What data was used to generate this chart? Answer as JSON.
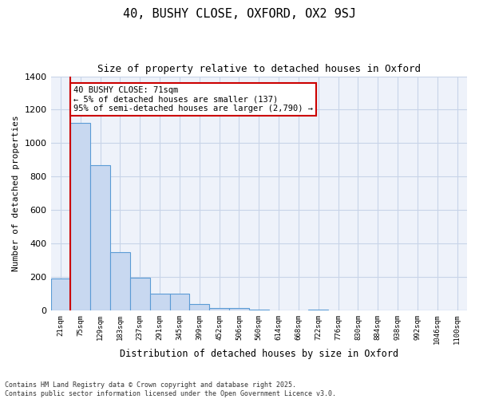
{
  "title1": "40, BUSHY CLOSE, OXFORD, OX2 9SJ",
  "title2": "Size of property relative to detached houses in Oxford",
  "xlabel": "Distribution of detached houses by size in Oxford",
  "ylabel": "Number of detached properties",
  "bar_labels": [
    "21sqm",
    "75sqm",
    "129sqm",
    "183sqm",
    "237sqm",
    "291sqm",
    "345sqm",
    "399sqm",
    "452sqm",
    "506sqm",
    "560sqm",
    "614sqm",
    "668sqm",
    "722sqm",
    "776sqm",
    "830sqm",
    "884sqm",
    "938sqm",
    "992sqm",
    "1046sqm",
    "1100sqm"
  ],
  "bar_values": [
    190,
    1120,
    870,
    350,
    195,
    100,
    100,
    40,
    15,
    15,
    5,
    0,
    0,
    5,
    0,
    0,
    0,
    0,
    0,
    0,
    0
  ],
  "bar_color": "#c8d8f0",
  "bar_edge_color": "#5b9bd5",
  "grid_color": "#c8d4e8",
  "bg_color": "#eef2fa",
  "annotation_text": "40 BUSHY CLOSE: 71sqm\n← 5% of detached houses are smaller (137)\n95% of semi-detached houses are larger (2,790) →",
  "vline_color": "#cc0000",
  "box_edge_color": "#cc0000",
  "ylim": [
    0,
    1400
  ],
  "yticks": [
    0,
    200,
    400,
    600,
    800,
    1000,
    1200,
    1400
  ],
  "footer1": "Contains HM Land Registry data © Crown copyright and database right 2025.",
  "footer2": "Contains public sector information licensed under the Open Government Licence v3.0."
}
